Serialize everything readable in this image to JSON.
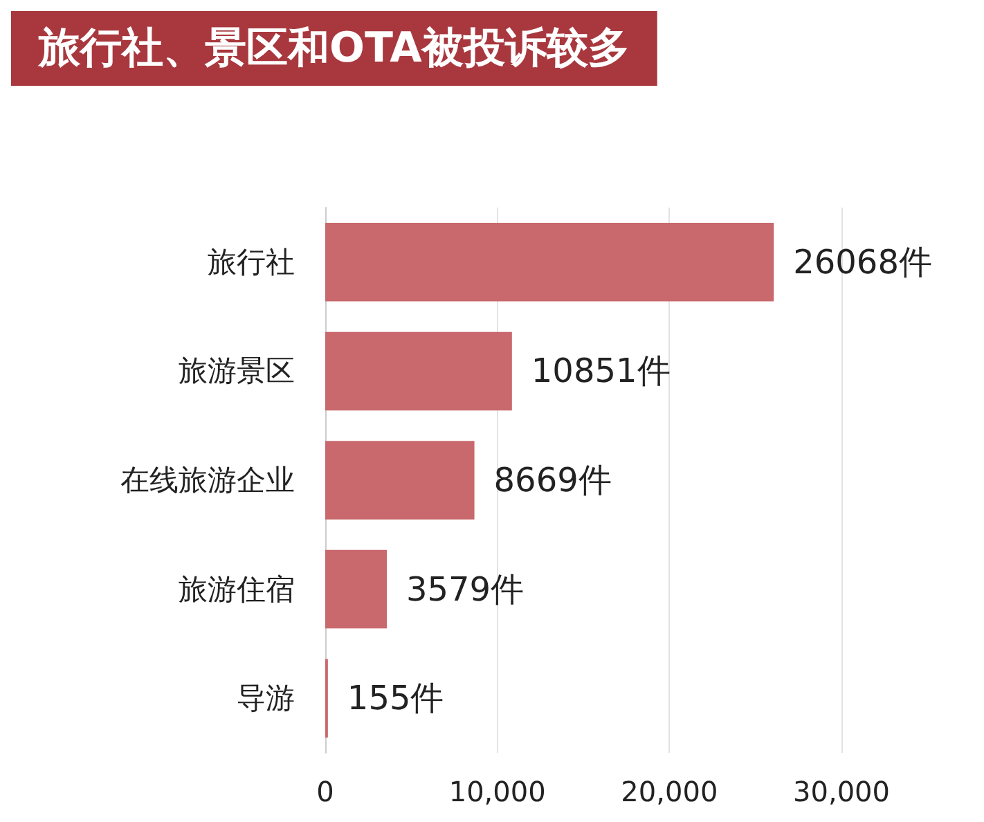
{
  "chart_data": {
    "type": "bar",
    "orientation": "horizontal",
    "title": "旅行社、景区和OTA被投诉较多",
    "categories": [
      "旅行社",
      "旅游景区",
      "在线旅游企业",
      "旅游住宿",
      "导游"
    ],
    "values": [
      26068,
      10851,
      8669,
      3579,
      155
    ],
    "value_labels": [
      "26068件",
      "10851件",
      "8669件",
      "3579件",
      "155件"
    ],
    "color": "#c9686d",
    "xlim": [
      0,
      30000
    ],
    "xticks": [
      0,
      {
        "value": 10000,
        "label": "10,000"
      },
      {
        "value": 20000,
        "label": "20,000"
      },
      {
        "value": 30000,
        "label": "30,000"
      }
    ],
    "grid": "x"
  }
}
